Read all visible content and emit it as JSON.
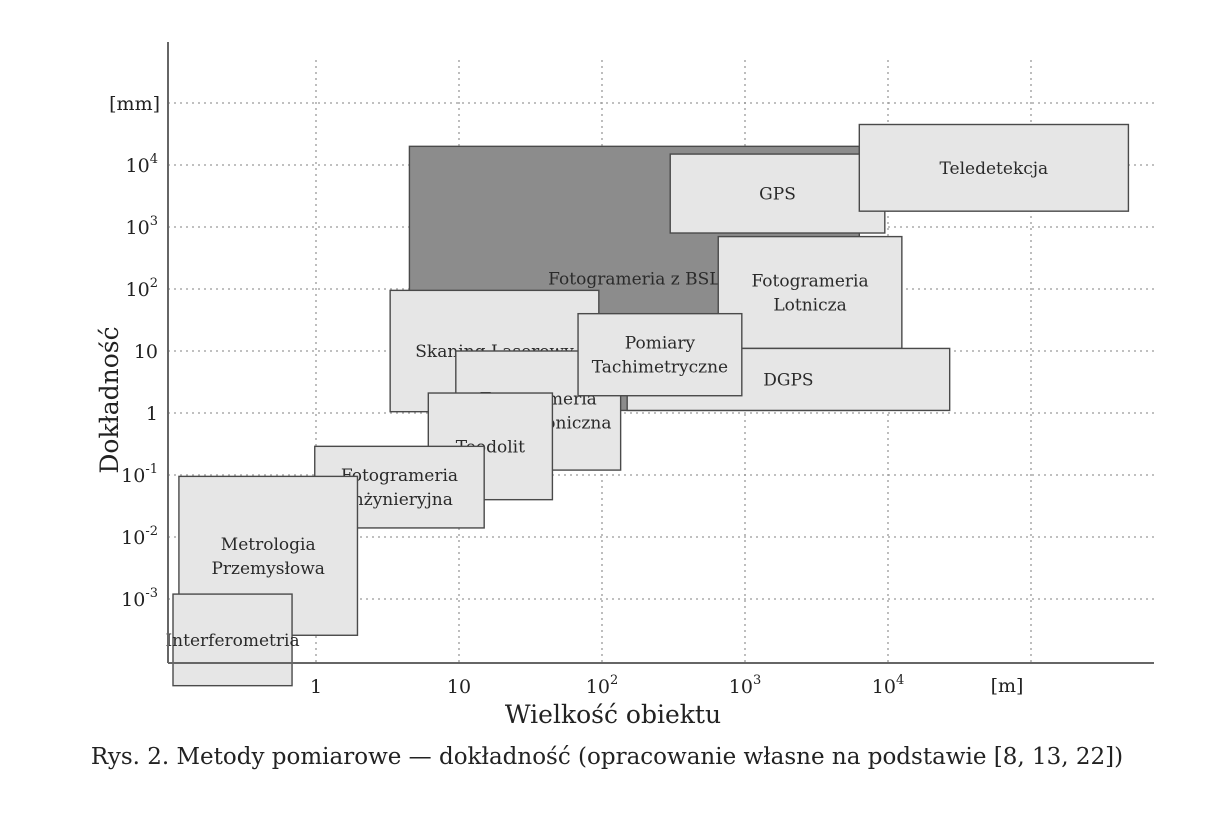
{
  "chart_data": {
    "type": "range-box diagram",
    "xlabel": "Wielkość obiektu",
    "ylabel": "Dokładność",
    "x_unit": "[m]",
    "y_unit": "[mm]",
    "x_ticks": [
      {
        "base": "1",
        "exp": ""
      },
      {
        "base": "10",
        "exp": ""
      },
      {
        "base": "10",
        "exp": "2"
      },
      {
        "base": "10",
        "exp": "3"
      },
      {
        "base": "10",
        "exp": "4"
      }
    ],
    "y_ticks": [
      {
        "base": "10",
        "exp": "-3"
      },
      {
        "base": "10",
        "exp": "-2"
      },
      {
        "base": "10",
        "exp": "-1"
      },
      {
        "base": "1",
        "exp": ""
      },
      {
        "base": "10",
        "exp": ""
      },
      {
        "base": "10",
        "exp": "2"
      },
      {
        "base": "10",
        "exp": "3"
      },
      {
        "base": "10",
        "exp": "4"
      }
    ],
    "grid": "dotted",
    "regions": [
      {
        "name": "Fotogrameria z BSL",
        "x_min": 4.5,
        "x_max": 6300,
        "y_min": 1.1,
        "y_max": 20000,
        "color": "#8c8c8c",
        "labels": [
          "Fotogrameria z BSL"
        ]
      },
      {
        "name": "GPS",
        "x_min": 300,
        "x_max": 9500,
        "y_min": 800,
        "y_max": 15000,
        "color": "#e6e6e6",
        "labels": [
          "GPS"
        ]
      },
      {
        "name": "Teledetekcja",
        "x_min": 6300,
        "x_max": 480000,
        "y_min": 1800,
        "y_max": 45000,
        "color": "#e6e6e6",
        "labels": [
          "Teledetekcja"
        ]
      },
      {
        "name": "Fotogrameria Lotnicza",
        "x_min": 650,
        "x_max": 12500,
        "y_min": 11,
        "y_max": 700,
        "color": "#e6e6e6",
        "labels": [
          "Fotogrameria",
          "Lotnicza"
        ]
      },
      {
        "name": "DGPS",
        "x_min": 150,
        "x_max": 27000,
        "y_min": 1.1,
        "y_max": 11,
        "color": "#e6e6e6",
        "labels": [
          "DGPS"
        ]
      },
      {
        "name": "Skaning Laserowy",
        "x_min": 3.3,
        "x_max": 95,
        "y_min": 1.05,
        "y_max": 95,
        "color": "#e6e6e6",
        "labels": [
          "Skaning Laserowy"
        ]
      },
      {
        "name": "Fotogrameria Architektoniczna",
        "x_min": 9.5,
        "x_max": 135,
        "y_min": 0.12,
        "y_max": 10,
        "color": "#e6e6e6",
        "labels": [
          "Fotogrameria",
          "Architektoniczna"
        ]
      },
      {
        "name": "Pomiary Tachimetryczne",
        "x_min": 68,
        "x_max": 950,
        "y_min": 1.9,
        "y_max": 40,
        "color": "#e6e6e6",
        "labels": [
          "Pomiary",
          "Tachimetryczne"
        ]
      },
      {
        "name": "Teodolit",
        "x_min": 6.1,
        "x_max": 45,
        "y_min": 0.04,
        "y_max": 2.1,
        "color": "#e6e6e6",
        "labels": [
          "Teodolit"
        ]
      },
      {
        "name": "Fotogrameria Inżynieryjna",
        "x_min": 0.98,
        "x_max": 15,
        "y_min": 0.014,
        "y_max": 0.29,
        "color": "#e6e6e6",
        "labels": [
          "Fotogrameria",
          "Inżynieryjna"
        ]
      },
      {
        "name": "Metrologia Przemysłowa",
        "x_min": 0.11,
        "x_max": 1.95,
        "y_min": 0.00026,
        "y_max": 0.095,
        "color": "#e6e6e6",
        "labels": [
          "Metrologia",
          "Przemysłowa"
        ]
      },
      {
        "name": "Interferometria",
        "x_min": 0.1,
        "x_max": 0.68,
        "y_min": 4e-05,
        "y_max": 0.0012,
        "color": "#e6e6e6",
        "labels": [
          "Interferometria"
        ]
      }
    ]
  },
  "caption": "Rys. 2. Metody pomiarowe — dokładność (opracowanie własne na podstawie [8, 13, 22])"
}
